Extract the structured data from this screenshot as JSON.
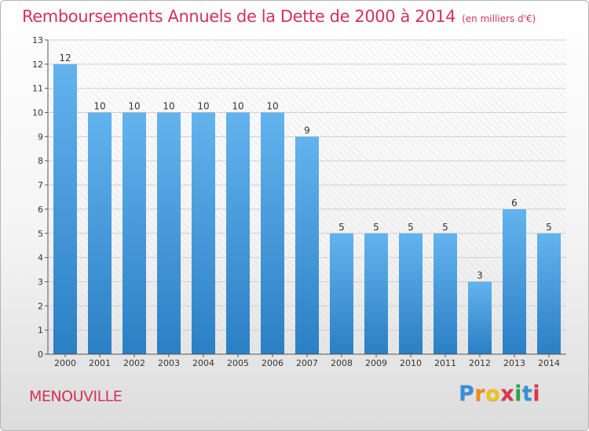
{
  "header": {
    "title": "Remboursements Annuels de la Dette de 2000 à 2014",
    "unit": "(en milliers d'€)"
  },
  "footer": {
    "commune": "MENOUVILLE",
    "logo_letters": [
      "P",
      "r",
      "o",
      "x",
      "i",
      "t",
      "i"
    ]
  },
  "colors": {
    "title": "#d2335a",
    "bar_top": "#63b3ee",
    "bar_bottom": "#2b7fc4"
  },
  "chart_data": {
    "type": "bar",
    "title": "Remboursements Annuels de la Dette de 2000 à 2014",
    "categories": [
      "2000",
      "2001",
      "2002",
      "2003",
      "2004",
      "2005",
      "2006",
      "2007",
      "2008",
      "2009",
      "2010",
      "2011",
      "2012",
      "2013",
      "2014"
    ],
    "values": [
      12,
      10,
      10,
      10,
      10,
      10,
      10,
      9,
      5,
      5,
      5,
      5,
      3,
      6,
      5
    ],
    "ylim": [
      0,
      13
    ],
    "yticks": [
      0,
      1,
      2,
      3,
      4,
      5,
      6,
      7,
      8,
      9,
      10,
      11,
      12,
      13
    ],
    "grid": true,
    "xlabel": "",
    "ylabel": ""
  }
}
